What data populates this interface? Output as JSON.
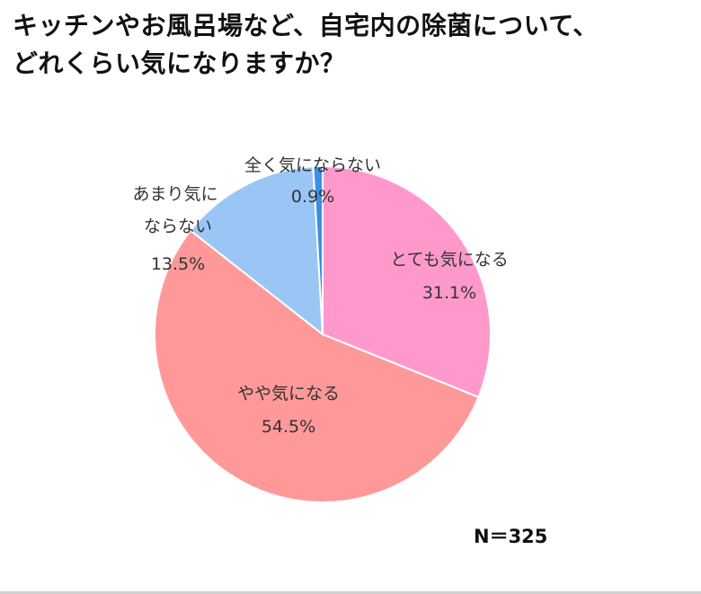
{
  "chart_data": {
    "type": "pie",
    "title_lines": [
      "キッチンやお風呂場など、自宅内の除菌について、",
      "どれくらい気になりますか？"
    ],
    "categories": [
      "とても気になる",
      "やや気になる",
      "あまり気に ならない",
      "全く気にならない"
    ],
    "values": [
      31.1,
      54.5,
      13.5,
      0.9
    ],
    "value_labels": [
      "31.1%",
      "54.5%",
      "13.5%",
      "0.9%"
    ],
    "colors": [
      "#ff99cc",
      "#ff9999",
      "#99c6f5",
      "#3a8ee6"
    ],
    "direction": "clockwise-from-top",
    "sample_size": "N＝325"
  }
}
